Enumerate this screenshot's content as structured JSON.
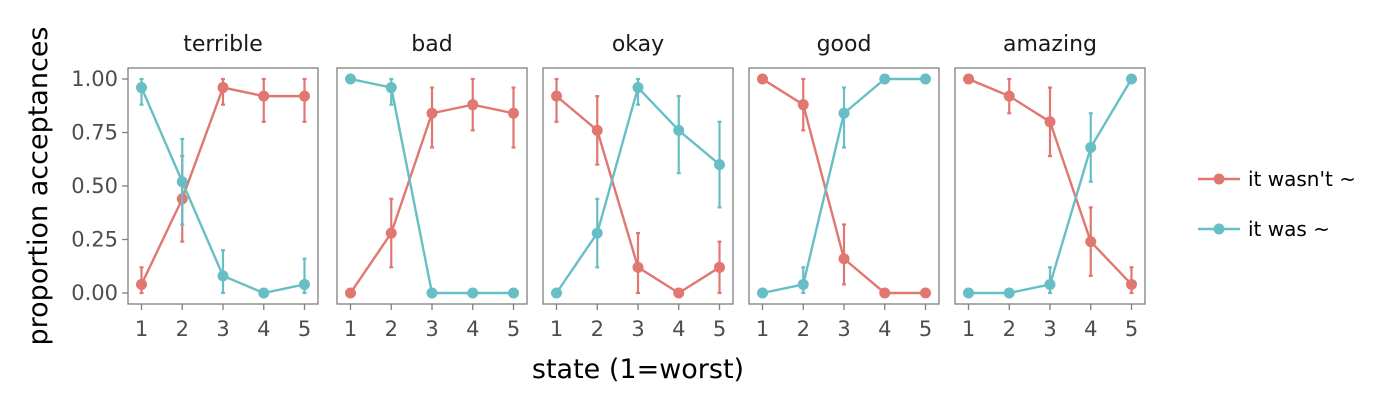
{
  "chart_data": {
    "type": "line",
    "xlabel": "state (1=worst)",
    "ylabel": "proportion acceptances",
    "ylim": [
      0,
      1
    ],
    "xlim": [
      1,
      5
    ],
    "x_ticks": [
      "1",
      "2",
      "3",
      "4",
      "5"
    ],
    "y_ticks": [
      "0.00",
      "0.25",
      "0.50",
      "0.75",
      "1.00"
    ],
    "grid": false,
    "legend_position": "right",
    "legend": [
      {
        "label": "it wasn't ~",
        "color": "#E07770"
      },
      {
        "label": "it was ~",
        "color": "#67BFC5"
      }
    ],
    "panels": [
      {
        "title": "terrible",
        "x": [
          1,
          2,
          3,
          4,
          5
        ],
        "series": [
          {
            "values": [
              0.04,
              0.44,
              0.96,
              0.92,
              0.92
            ],
            "lower": [
              0.0,
              0.24,
              0.88,
              0.8,
              0.8
            ],
            "upper": [
              0.12,
              0.64,
              1.0,
              1.0,
              1.0
            ]
          },
          {
            "values": [
              0.96,
              0.52,
              0.08,
              0.0,
              0.04
            ],
            "lower": [
              0.88,
              0.32,
              0.0,
              0.0,
              0.0
            ],
            "upper": [
              1.0,
              0.72,
              0.2,
              0.0,
              0.16
            ]
          }
        ]
      },
      {
        "title": "bad",
        "x": [
          1,
          2,
          3,
          4,
          5
        ],
        "series": [
          {
            "values": [
              0.0,
              0.28,
              0.84,
              0.88,
              0.84
            ],
            "lower": [
              0.0,
              0.12,
              0.68,
              0.76,
              0.68
            ],
            "upper": [
              0.0,
              0.44,
              0.96,
              1.0,
              0.96
            ]
          },
          {
            "values": [
              1.0,
              0.96,
              0.0,
              0.0,
              0.0
            ],
            "lower": [
              1.0,
              0.88,
              0.0,
              0.0,
              0.0
            ],
            "upper": [
              1.0,
              1.0,
              0.0,
              0.0,
              0.0
            ]
          }
        ]
      },
      {
        "title": "okay",
        "x": [
          1,
          2,
          3,
          4,
          5
        ],
        "series": [
          {
            "values": [
              0.92,
              0.76,
              0.12,
              0.0,
              0.12
            ],
            "lower": [
              0.8,
              0.6,
              0.0,
              0.0,
              0.0
            ],
            "upper": [
              1.0,
              0.92,
              0.28,
              0.0,
              0.24
            ]
          },
          {
            "values": [
              0.0,
              0.28,
              0.96,
              0.76,
              0.6
            ],
            "lower": [
              0.0,
              0.12,
              0.88,
              0.56,
              0.4
            ],
            "upper": [
              0.0,
              0.44,
              1.0,
              0.92,
              0.8
            ]
          }
        ]
      },
      {
        "title": "good",
        "x": [
          1,
          2,
          3,
          4,
          5
        ],
        "series": [
          {
            "values": [
              1.0,
              0.88,
              0.16,
              0.0,
              0.0
            ],
            "lower": [
              1.0,
              0.76,
              0.04,
              0.0,
              0.0
            ],
            "upper": [
              1.0,
              1.0,
              0.32,
              0.0,
              0.0
            ]
          },
          {
            "values": [
              0.0,
              0.04,
              0.84,
              1.0,
              1.0
            ],
            "lower": [
              0.0,
              0.0,
              0.68,
              1.0,
              1.0
            ],
            "upper": [
              0.0,
              0.12,
              0.96,
              1.0,
              1.0
            ]
          }
        ]
      },
      {
        "title": "amazing",
        "x": [
          1,
          2,
          3,
          4,
          5
        ],
        "series": [
          {
            "values": [
              1.0,
              0.92,
              0.8,
              0.24,
              0.04
            ],
            "lower": [
              1.0,
              0.84,
              0.64,
              0.08,
              0.0
            ],
            "upper": [
              1.0,
              1.0,
              0.96,
              0.4,
              0.12
            ]
          },
          {
            "values": [
              0.0,
              0.0,
              0.04,
              0.68,
              1.0
            ],
            "lower": [
              0.0,
              0.0,
              0.0,
              0.52,
              1.0
            ],
            "upper": [
              0.0,
              0.0,
              0.12,
              0.84,
              1.0
            ]
          }
        ]
      }
    ]
  }
}
